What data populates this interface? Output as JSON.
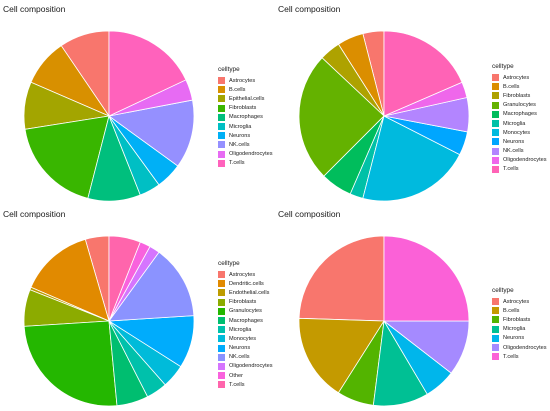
{
  "chart_data": [
    {
      "type": "pie",
      "title": "Cell composition",
      "legend_title": "celltype",
      "legend_position": "right",
      "categories": [
        "Astrocytes",
        "B.cells",
        "Epithelial.cells",
        "Fibroblasts",
        "Macrophages",
        "Microglia",
        "Neurons",
        "NK.cells",
        "Oligodendrocytes",
        "T.cells"
      ],
      "values": [
        0.095,
        0.09,
        0.09,
        0.185,
        0.1,
        0.04,
        0.05,
        0.13,
        0.04,
        0.18
      ],
      "colors": [
        "#F8766D",
        "#D89000",
        "#A3A500",
        "#39B600",
        "#00BF7D",
        "#00BFC4",
        "#00B0F6",
        "#9590FF",
        "#E76BF3",
        "#FF62BC"
      ]
    },
    {
      "type": "pie",
      "title": "Cell composition",
      "legend_title": "celltype",
      "legend_position": "right",
      "categories": [
        "Astrocytes",
        "B.cells",
        "Fibroblasts",
        "Granulocytes",
        "Macrophages",
        "Microglia",
        "Monocytes",
        "Neurons",
        "NK.cells",
        "Oligodendrocytes",
        "T.cells"
      ],
      "values": [
        0.04,
        0.05,
        0.04,
        0.245,
        0.06,
        0.025,
        0.215,
        0.045,
        0.065,
        0.03,
        0.185
      ],
      "colors": [
        "#F8766D",
        "#DB8E00",
        "#AEA200",
        "#64B200",
        "#00BD5C",
        "#00C1A7",
        "#00BADE",
        "#00A6FF",
        "#B385FF",
        "#EF67EB",
        "#FF63B6"
      ]
    },
    {
      "type": "pie",
      "title": "Cell composition",
      "legend_title": "celltype",
      "legend_position": "right",
      "categories": [
        "Astrocytes",
        "Dendritic.cells",
        "Endothelial.cells",
        "Fibroblasts",
        "Granulocytes",
        "Macrophages",
        "Microglia",
        "Monocytes",
        "Neurons",
        "NK.cells",
        "Oligodendrocytes",
        "Other",
        "T.cells"
      ],
      "values": [
        0.045,
        0.14,
        0.005,
        0.07,
        0.255,
        0.06,
        0.04,
        0.045,
        0.1,
        0.14,
        0.02,
        0.02,
        0.06
      ],
      "colors": [
        "#F8766D",
        "#E18A00",
        "#BE9C00",
        "#8CAB00",
        "#24B700",
        "#00BE70",
        "#00C1AB",
        "#00BBDA",
        "#00ACFC",
        "#8B93FF",
        "#D575FE",
        "#F962DD",
        "#FF65AC"
      ]
    },
    {
      "type": "pie",
      "title": "Cell composition",
      "legend_title": "celltype",
      "legend_position": "right",
      "categories": [
        "Astrocytes",
        "B.cells",
        "Fibroblasts",
        "Microglia",
        "Neurons",
        "Oligodendrocytes",
        "T.cells"
      ],
      "values": [
        0.245,
        0.165,
        0.07,
        0.105,
        0.06,
        0.105,
        0.25
      ],
      "colors": [
        "#F8766D",
        "#C49A00",
        "#53B400",
        "#00C094",
        "#00B6EB",
        "#A58AFF",
        "#FB61D7"
      ]
    }
  ]
}
